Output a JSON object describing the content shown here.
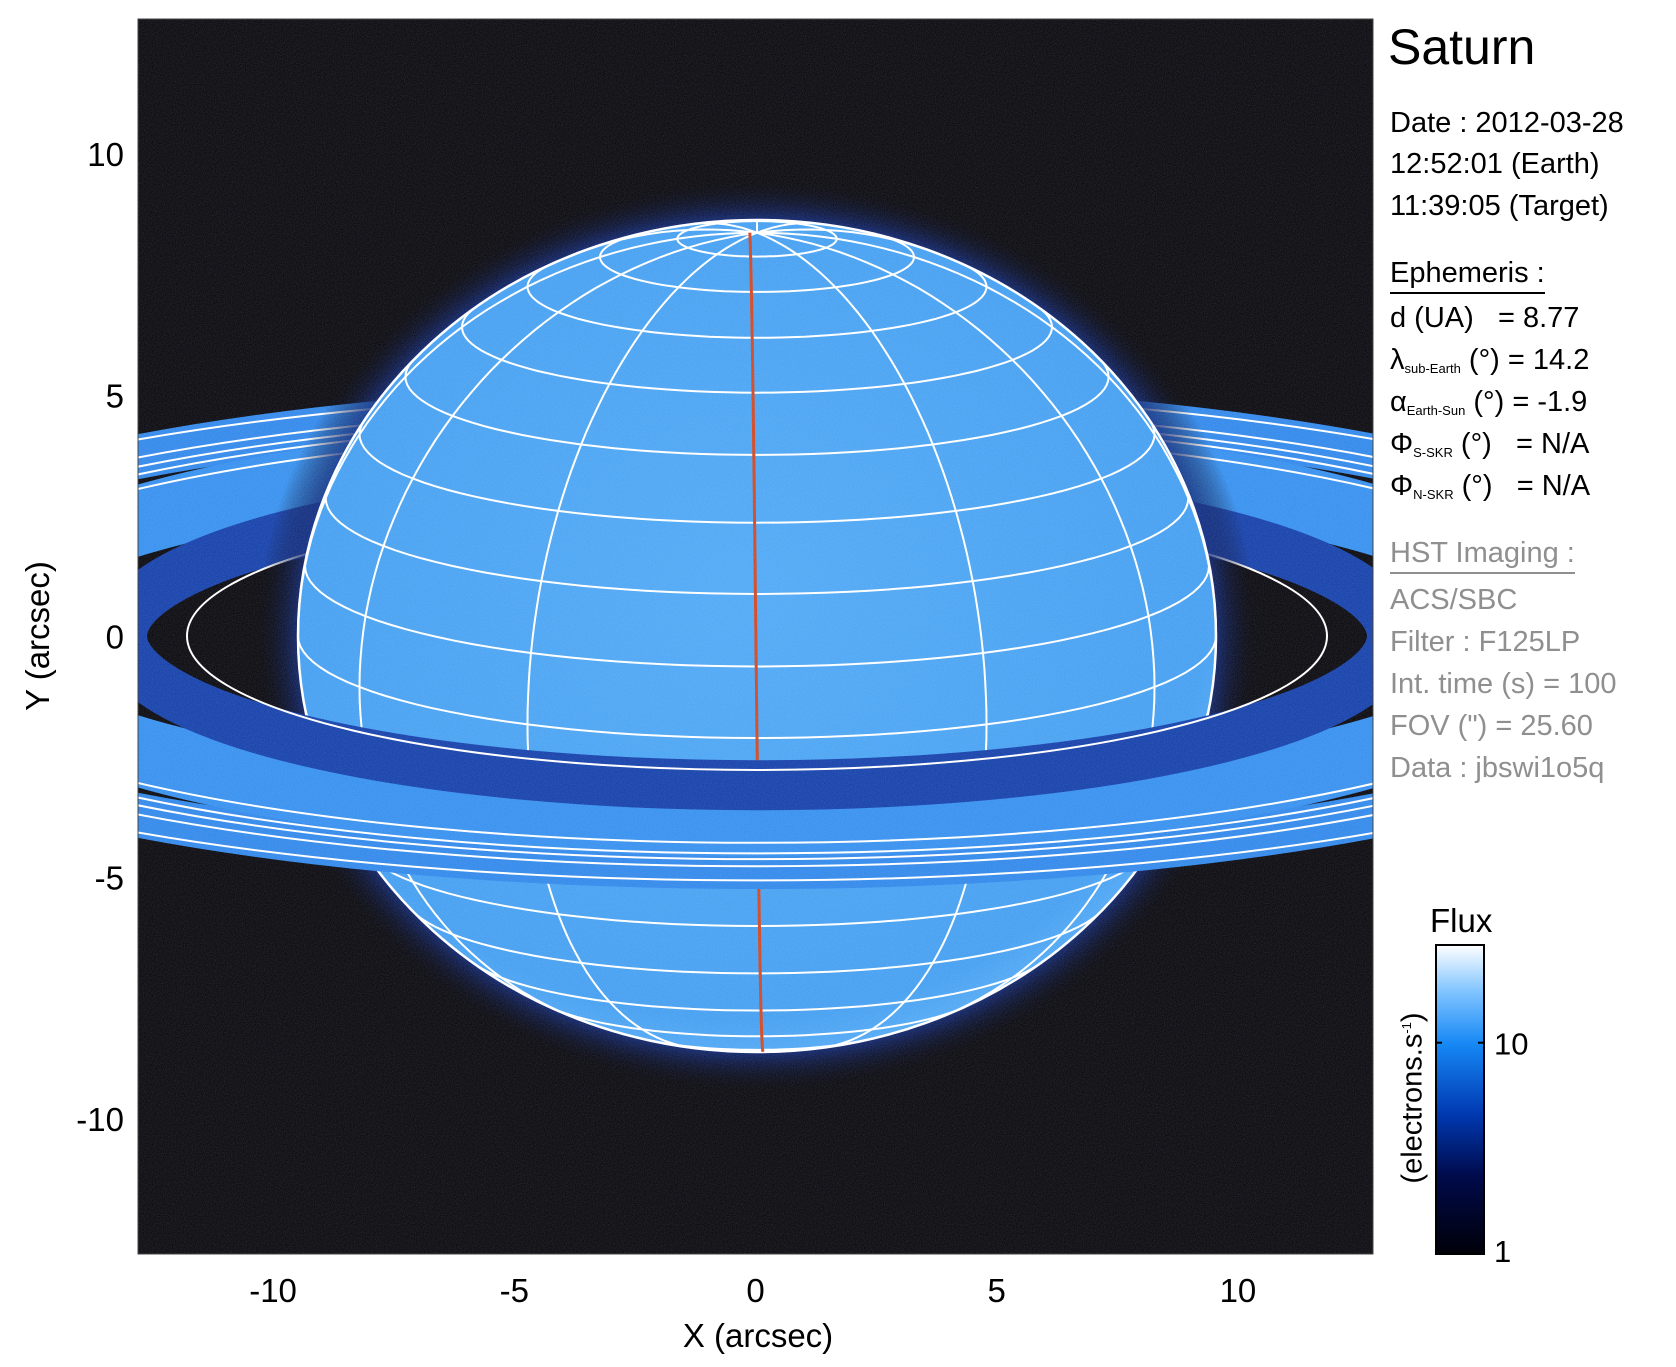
{
  "colors": {
    "background": "#000000",
    "planet": "#3f9df2",
    "rings": "#2a84ea",
    "grid": "#ffffff",
    "central_meridian": "#d0401a",
    "info_gray": "#8f8f8f"
  },
  "chart_data": {
    "type": "heatmap",
    "xlabel": "X (arcsec)",
    "ylabel": "Y (arcsec)",
    "xlim": [
      -12.8,
      12.8
    ],
    "ylim": [
      -12.8,
      12.8
    ],
    "xticks": [
      "-10",
      "-5",
      "0",
      "5",
      "10"
    ],
    "yticks": [
      "10",
      "5",
      "0",
      "-5",
      "-10"
    ],
    "xtick_values": [
      -10,
      -5,
      0,
      5,
      10
    ],
    "ytick_values": [
      10,
      5,
      0,
      -5,
      -10
    ],
    "colorbar": {
      "title": "Flux",
      "label": "(electrons.s-1)",
      "label_main": "(electrons.s",
      "label_sup": "-1",
      "label_close": ")",
      "scale": "log",
      "range": [
        1,
        29
      ],
      "ticks": [
        "10",
        "1"
      ],
      "tick_values": [
        10,
        1
      ]
    }
  },
  "panel": {
    "title": "Saturn",
    "date": "Date : 2012-03-28",
    "time_earth": "12:52:01 (Earth)",
    "time_target": "11:39:05 (Target)",
    "ephemeris_heading": "Ephemeris :",
    "ephemeris": [
      {
        "sym": "d (UA)",
        "sub": "",
        "unit": "",
        "eq": "   = 8.77"
      },
      {
        "sym": "λ",
        "sub": "sub-Earth",
        "unit": " (°)",
        "eq": " = 14.2"
      },
      {
        "sym": "α",
        "sub": "Earth-Sun",
        "unit": " (°)",
        "eq": " = -1.9"
      },
      {
        "sym": "Φ",
        "sub": "S-SKR",
        "unit": " (°)",
        "eq": "   = N/A"
      },
      {
        "sym": "Φ",
        "sub": "N-SKR",
        "unit": " (°)",
        "eq": "   = N/A"
      }
    ],
    "hst_heading": "HST Imaging :",
    "hst": [
      "ACS/SBC",
      "Filter : F125LP",
      "Int. time (s) = 100",
      "FOV (\") = 25.60",
      "Data : jbswi1o5q"
    ]
  }
}
